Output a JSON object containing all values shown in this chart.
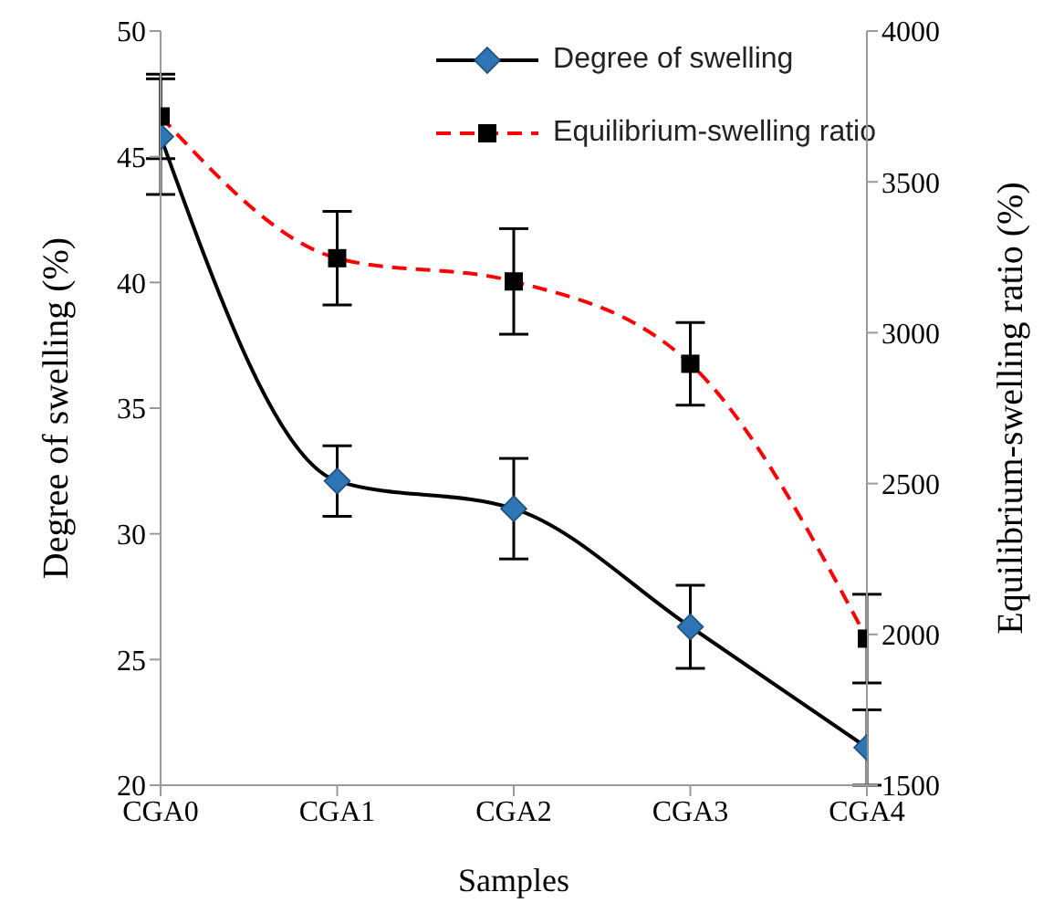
{
  "chart_data": {
    "type": "line",
    "xlabel": "Samples",
    "ylabel": "Degree  of  swelling  (%)",
    "y2label": "Equilibrium-swelling  ratio  (%)",
    "categories": [
      "CGA0",
      "CGA1",
      "CGA2",
      "CGA3",
      "CGA4"
    ],
    "series": [
      {
        "name": "Degree of swelling",
        "color": "#000000",
        "marker": "diamond",
        "line_style": "solid",
        "values": [
          45.8,
          32.1,
          31.0,
          26.3,
          21.5
        ],
        "errors": [
          2.3,
          1.4,
          2.0,
          1.65,
          1.5
        ]
      },
      {
        "name": "Equilibrium-swelling ratio",
        "color": "#ff0000",
        "marker": "square",
        "line_style": "dashed",
        "axis": "y2",
        "values": [
          3717,
          3247,
          3170,
          2897,
          1986
        ],
        "errors": [
          140,
          155,
          175,
          137,
          147
        ]
      }
    ],
    "ylim": [
      20,
      50
    ],
    "yticks": [
      20,
      25,
      30,
      35,
      40,
      45,
      50
    ],
    "y2lim": [
      1500,
      4000
    ],
    "y2ticks": [
      1500,
      2000,
      2500,
      3000,
      3500,
      4000
    ],
    "grid": false,
    "legend": "top right"
  }
}
